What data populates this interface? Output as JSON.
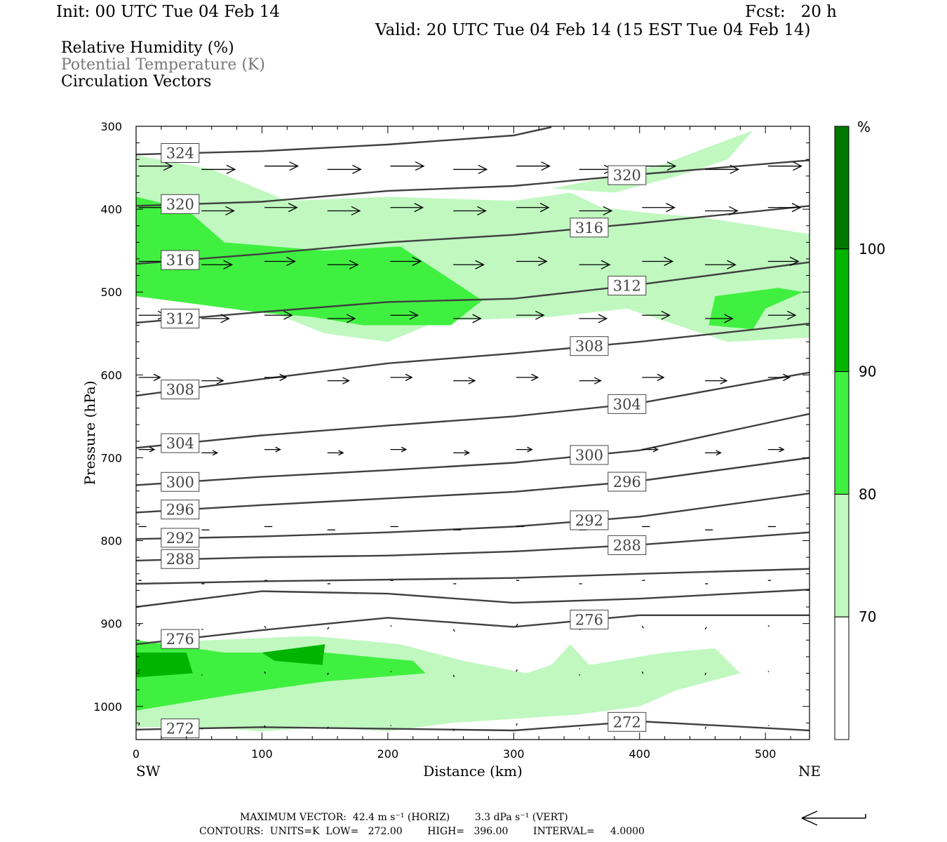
{
  "header": {
    "init": "Init: 00 UTC Tue 04 Feb 14",
    "fcst": "Fcst:   20 h",
    "valid": "Valid: 20 UTC Tue 04 Feb 14 (15 EST Tue 04 Feb 14)"
  },
  "fields": {
    "rh": "Relative Humidity (%)",
    "theta": "Potential Temperature (K)",
    "vectors": "Circulation Vectors"
  },
  "footer": {
    "max_vector": "MAXIMUM VECTOR:  42.4 m s⁻¹ (HORIZ)        3.3 dPa s⁻¹ (VERT)",
    "contours": "CONTOURS:  UNITS=K  LOW=   272.00        HIGH=   396.00        INTERVAL=     4.0000"
  },
  "colors": {
    "rh_70_80": "#c0f8c0",
    "rh_80_90": "#40f040",
    "rh_90_100": "#00b400",
    "rh_100": "#007800",
    "contour": "#404040"
  },
  "chart_data": {
    "type": "contour",
    "xlabel": "Distance (km)",
    "ylabel": "Pressure (hPa)",
    "x_left_label": "SW",
    "x_right_label": "NE",
    "xlim": [
      0,
      535
    ],
    "ylim": [
      1040,
      300
    ],
    "x_ticks": [
      0,
      100,
      200,
      300,
      400,
      500
    ],
    "y_ticks": [
      300,
      400,
      500,
      600,
      700,
      800,
      900,
      1000
    ],
    "colorbar": {
      "unit": "%",
      "ticks": [
        70,
        80,
        90,
        100
      ]
    },
    "isentropes": [
      {
        "level": 324,
        "labeled": true,
        "points": [
          [
            0,
            334
          ],
          [
            100,
            330
          ],
          [
            200,
            322
          ],
          [
            300,
            311
          ],
          [
            330,
            301
          ]
        ]
      },
      {
        "level": 320,
        "labeled": true,
        "points": [
          [
            0,
            396
          ],
          [
            100,
            391
          ],
          [
            200,
            378
          ],
          [
            300,
            372
          ],
          [
            400,
            358
          ],
          [
            535,
            341
          ]
        ]
      },
      {
        "level": 316,
        "labeled": true,
        "points": [
          [
            0,
            466
          ],
          [
            100,
            454
          ],
          [
            200,
            440
          ],
          [
            300,
            431
          ],
          [
            400,
            417
          ],
          [
            535,
            396
          ]
        ]
      },
      {
        "level": 312,
        "labeled": true,
        "points": [
          [
            0,
            537
          ],
          [
            100,
            524
          ],
          [
            200,
            512
          ],
          [
            300,
            508
          ],
          [
            400,
            491
          ],
          [
            535,
            464
          ]
        ]
      },
      {
        "level": 308,
        "labeled": true,
        "points": [
          [
            0,
            625
          ],
          [
            100,
            605
          ],
          [
            200,
            586
          ],
          [
            300,
            574
          ],
          [
            400,
            560
          ],
          [
            535,
            538
          ]
        ]
      },
      {
        "level": 304,
        "labeled": true,
        "points": [
          [
            0,
            688
          ],
          [
            100,
            673
          ],
          [
            200,
            661
          ],
          [
            300,
            650
          ],
          [
            400,
            634
          ],
          [
            535,
            597
          ]
        ]
      },
      {
        "level": 300,
        "labeled": true,
        "points": [
          [
            0,
            733
          ],
          [
            100,
            723
          ],
          [
            200,
            715
          ],
          [
            300,
            706
          ],
          [
            400,
            691
          ],
          [
            535,
            647
          ]
        ]
      },
      {
        "level": 296,
        "labeled": true,
        "points": [
          [
            0,
            766
          ],
          [
            100,
            757
          ],
          [
            200,
            749
          ],
          [
            300,
            741
          ],
          [
            400,
            728
          ],
          [
            535,
            700
          ]
        ]
      },
      {
        "level": 292,
        "labeled": true,
        "points": [
          [
            0,
            798
          ],
          [
            100,
            795
          ],
          [
            200,
            790
          ],
          [
            300,
            783
          ],
          [
            400,
            771
          ],
          [
            535,
            743
          ]
        ]
      },
      {
        "level": 288,
        "labeled": true,
        "points": [
          [
            0,
            824
          ],
          [
            100,
            820
          ],
          [
            200,
            818
          ],
          [
            300,
            813
          ],
          [
            400,
            805
          ],
          [
            535,
            790
          ]
        ]
      },
      {
        "level": 284,
        "labeled": false,
        "points": [
          [
            0,
            852
          ],
          [
            100,
            849
          ],
          [
            200,
            847
          ],
          [
            300,
            845
          ],
          [
            400,
            840
          ],
          [
            535,
            834
          ]
        ]
      },
      {
        "level": 280,
        "labeled": false,
        "points": [
          [
            0,
            880
          ],
          [
            100,
            861
          ],
          [
            200,
            864
          ],
          [
            300,
            875
          ],
          [
            400,
            870
          ],
          [
            535,
            859
          ]
        ]
      },
      {
        "level": 276,
        "labeled": true,
        "points": [
          [
            0,
            925
          ],
          [
            100,
            908
          ],
          [
            200,
            893
          ],
          [
            300,
            904
          ],
          [
            400,
            890
          ],
          [
            535,
            890
          ]
        ]
      },
      {
        "level": 272,
        "labeled": true,
        "points": [
          [
            0,
            1028
          ],
          [
            100,
            1025
          ],
          [
            200,
            1027
          ],
          [
            300,
            1029
          ],
          [
            400,
            1018
          ],
          [
            535,
            1029
          ]
        ]
      }
    ],
    "rh_regions": [
      {
        "range": "70-80",
        "points": [
          [
            0,
            335
          ],
          [
            60,
            352
          ],
          [
            120,
            390
          ],
          [
            200,
            385
          ],
          [
            300,
            390
          ],
          [
            345,
            380
          ],
          [
            370,
            398
          ],
          [
            410,
            405
          ],
          [
            450,
            410
          ],
          [
            535,
            430
          ],
          [
            535,
            555
          ],
          [
            470,
            560
          ],
          [
            420,
            535
          ],
          [
            390,
            520
          ],
          [
            330,
            530
          ],
          [
            240,
            535
          ],
          [
            200,
            560
          ],
          [
            150,
            550
          ],
          [
            100,
            520
          ],
          [
            50,
            495
          ],
          [
            0,
            485
          ]
        ]
      },
      {
        "range": "70-80",
        "points": [
          [
            330,
            375
          ],
          [
            380,
            360
          ],
          [
            420,
            345
          ],
          [
            460,
            322
          ],
          [
            490,
            305
          ],
          [
            470,
            340
          ],
          [
            430,
            360
          ],
          [
            380,
            380
          ]
        ]
      },
      {
        "range": "80-90",
        "points": [
          [
            0,
            385
          ],
          [
            40,
            400
          ],
          [
            70,
            440
          ],
          [
            150,
            450
          ],
          [
            210,
            445
          ],
          [
            275,
            510
          ],
          [
            250,
            540
          ],
          [
            180,
            540
          ],
          [
            140,
            530
          ],
          [
            100,
            525
          ],
          [
            50,
            515
          ],
          [
            0,
            505
          ]
        ]
      },
      {
        "range": "80-90",
        "points": [
          [
            460,
            505
          ],
          [
            510,
            495
          ],
          [
            530,
            500
          ],
          [
            500,
            520
          ],
          [
            490,
            545
          ],
          [
            455,
            540
          ]
        ]
      },
      {
        "range": "70-80",
        "points": [
          [
            0,
            925
          ],
          [
            60,
            920
          ],
          [
            140,
            915
          ],
          [
            210,
            925
          ],
          [
            260,
            945
          ],
          [
            310,
            960
          ],
          [
            330,
            950
          ],
          [
            345,
            925
          ],
          [
            360,
            950
          ],
          [
            420,
            935
          ],
          [
            460,
            930
          ],
          [
            480,
            960
          ],
          [
            430,
            980
          ],
          [
            400,
            1000
          ],
          [
            350,
            1010
          ],
          [
            300,
            1015
          ],
          [
            250,
            1020
          ],
          [
            200,
            1030
          ],
          [
            150,
            1025
          ],
          [
            100,
            1030
          ],
          [
            50,
            1025
          ],
          [
            0,
            1025
          ]
        ]
      },
      {
        "range": "80-90",
        "points": [
          [
            0,
            920
          ],
          [
            70,
            935
          ],
          [
            150,
            935
          ],
          [
            220,
            945
          ],
          [
            230,
            960
          ],
          [
            150,
            970
          ],
          [
            80,
            985
          ],
          [
            0,
            1005
          ]
        ]
      },
      {
        "range": "90-100",
        "points": [
          [
            0,
            935
          ],
          [
            40,
            935
          ],
          [
            45,
            960
          ],
          [
            0,
            965
          ]
        ]
      },
      {
        "range": "90-100",
        "points": [
          [
            100,
            935
          ],
          [
            150,
            925
          ],
          [
            148,
            950
          ],
          [
            110,
            945
          ]
        ]
      }
    ]
  }
}
